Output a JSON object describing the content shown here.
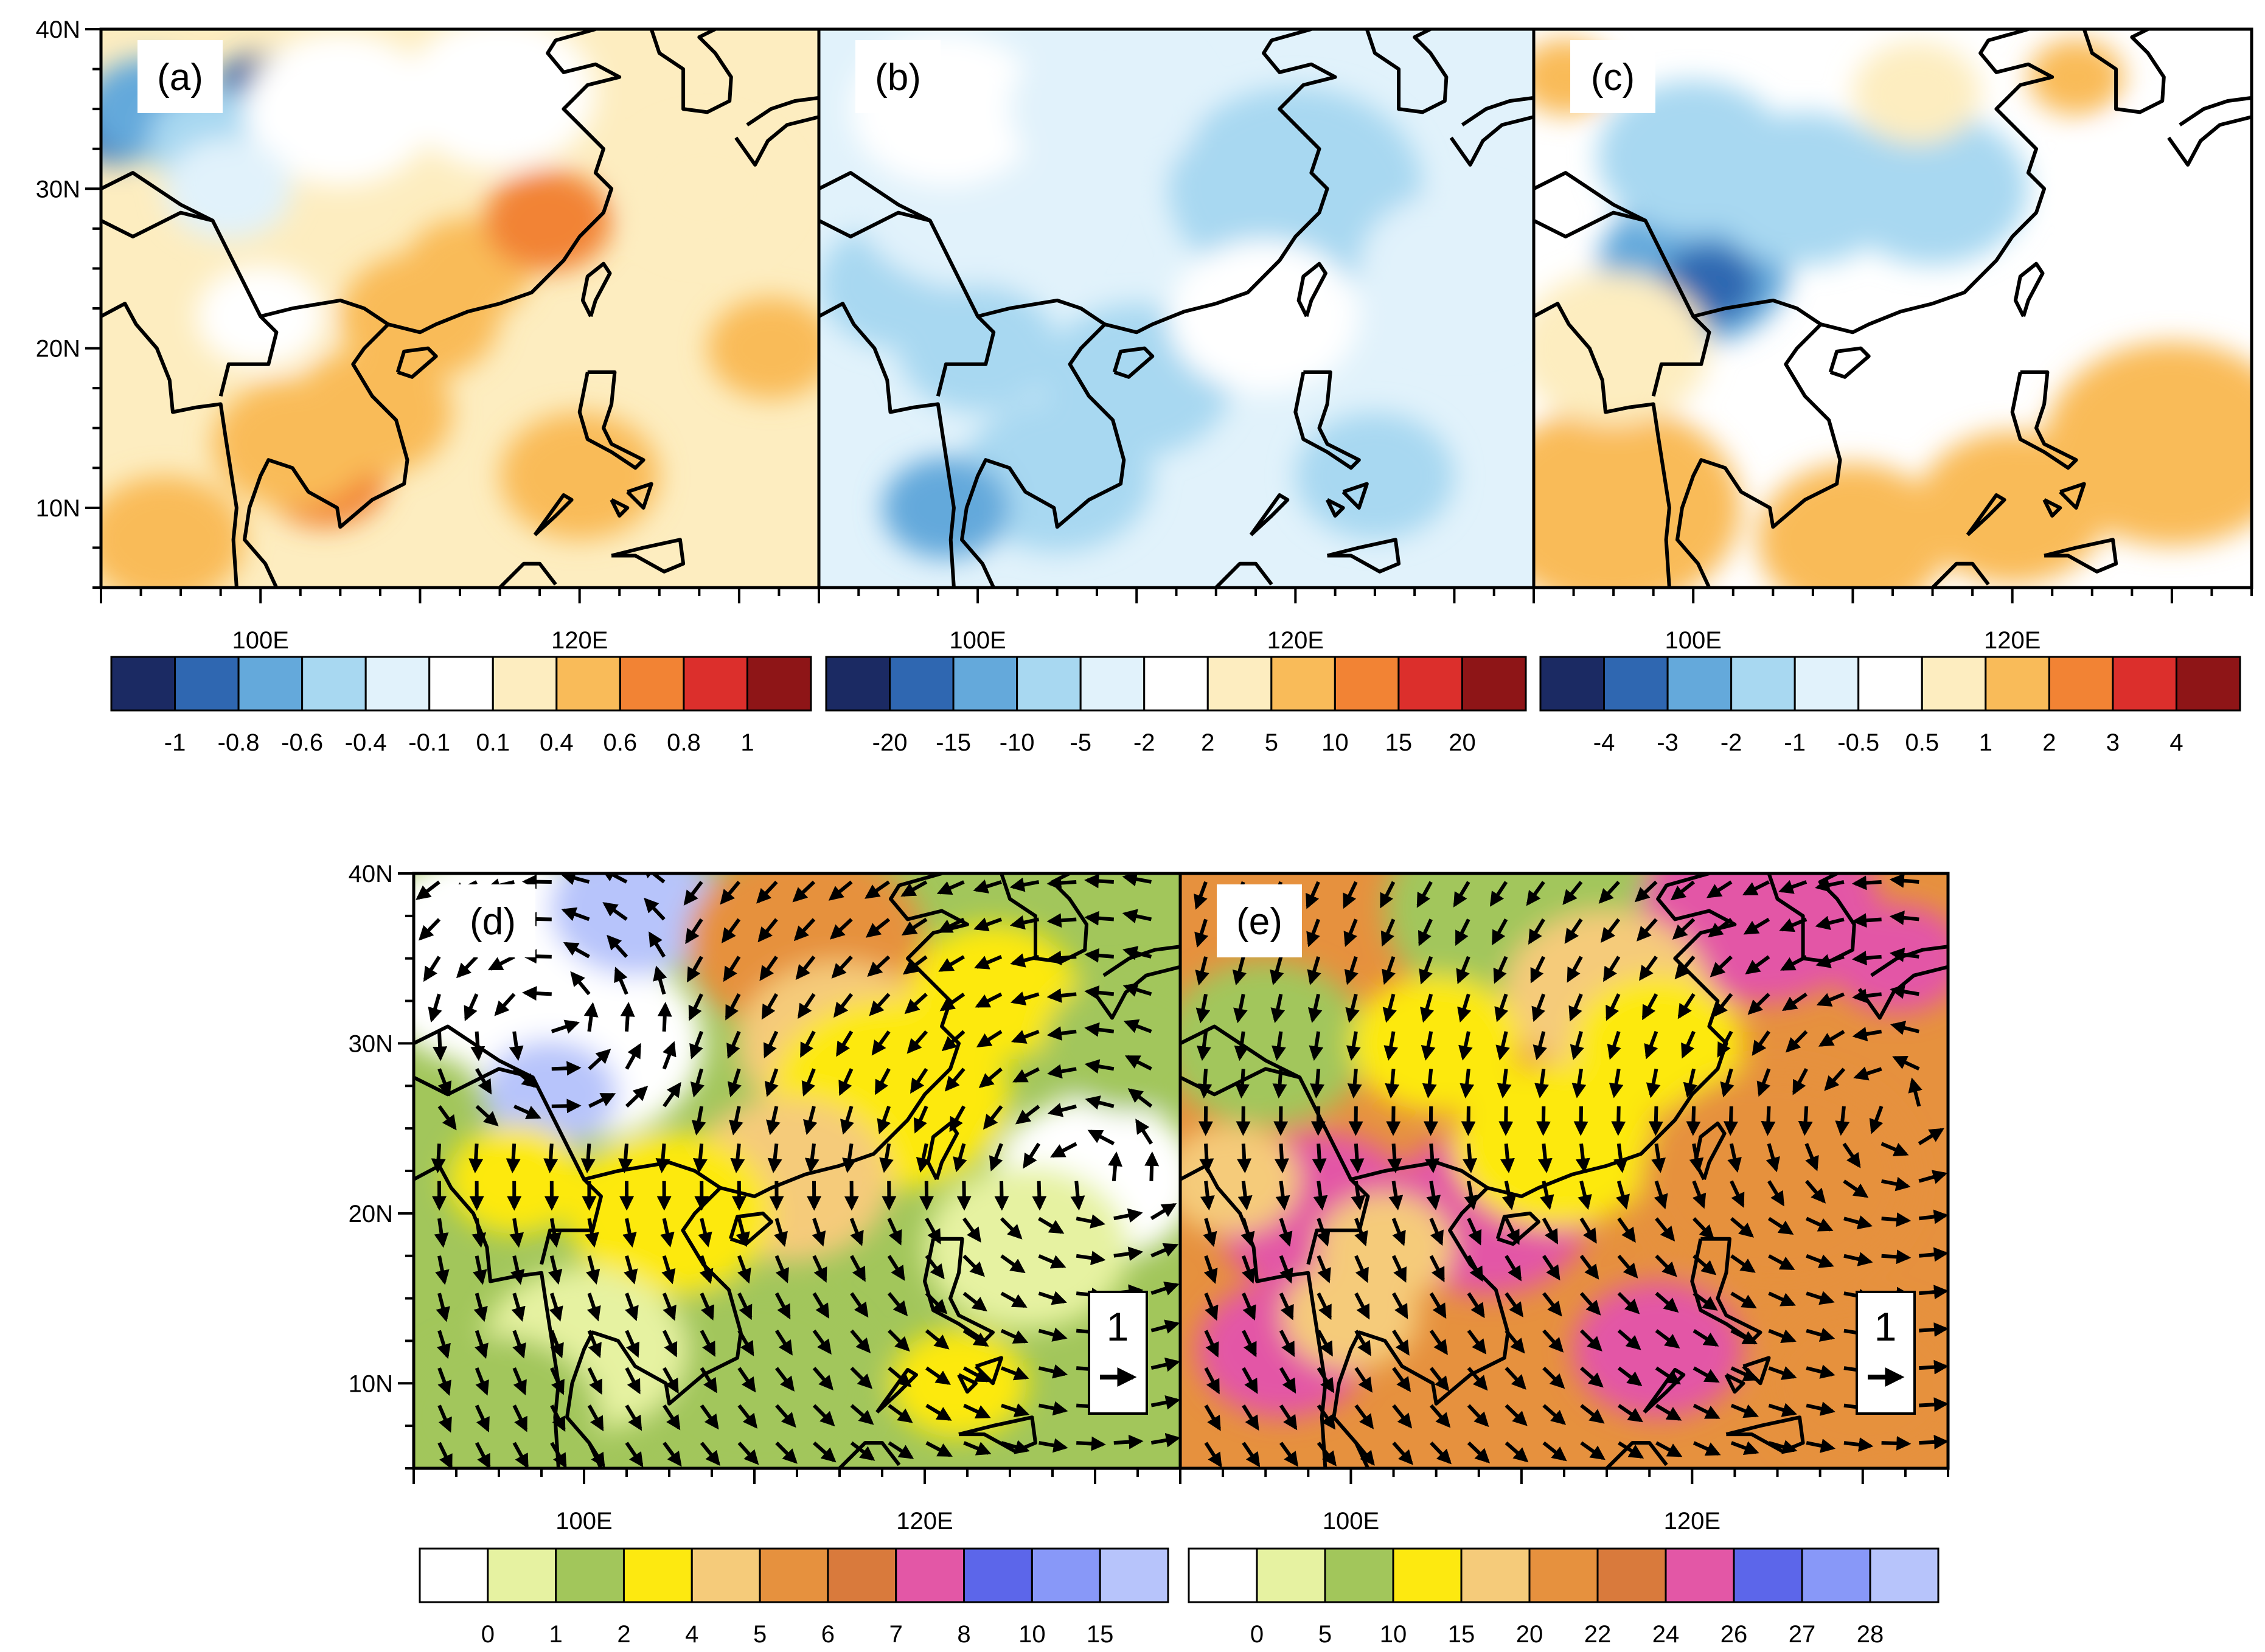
{
  "panels": [
    {
      "id": "a",
      "label": "(a)",
      "palette": "diverging",
      "lat_labels": [
        "40N",
        "30N",
        "20N",
        "10N"
      ],
      "lon_labels": [
        "100E",
        "120E"
      ],
      "colorbar_labels": [
        "-1",
        "-0.8",
        "-0.6",
        "-0.4",
        "-0.1",
        "0.1",
        "0.4",
        "0.6",
        "0.8",
        "1"
      ]
    },
    {
      "id": "b",
      "label": "(b)",
      "palette": "diverging",
      "lat_labels": [],
      "lon_labels": [
        "100E",
        "120E"
      ],
      "colorbar_labels": [
        "-20",
        "-15",
        "-10",
        "-5",
        "-2",
        "2",
        "5",
        "10",
        "15",
        "20"
      ]
    },
    {
      "id": "c",
      "label": "(c)",
      "palette": "diverging",
      "lat_labels": [],
      "lon_labels": [
        "100E",
        "120E"
      ],
      "colorbar_labels": [
        "-4",
        "-3",
        "-2",
        "-1",
        "-0.5",
        "0.5",
        "1",
        "2",
        "3",
        "4"
      ]
    },
    {
      "id": "d",
      "label": "(d)",
      "palette": "sequential",
      "ref_vector_label": "1",
      "lat_labels": [
        "40N",
        "30N",
        "20N",
        "10N"
      ],
      "lon_labels": [
        "100E",
        "120E"
      ],
      "colorbar_labels": [
        "0",
        "1",
        "2",
        "4",
        "5",
        "6",
        "7",
        "8",
        "10",
        "15"
      ]
    },
    {
      "id": "e",
      "label": "(e)",
      "palette": "sequential",
      "ref_vector_label": "1",
      "lat_labels": [],
      "lon_labels": [
        "100E",
        "120E"
      ],
      "colorbar_labels": [
        "0",
        "5",
        "10",
        "15",
        "20",
        "22",
        "24",
        "26",
        "27",
        "28"
      ]
    }
  ],
  "colors": {
    "diverging": [
      "#1b2a63",
      "#2f67b1",
      "#64a9db",
      "#a8d8f1",
      "#e1f2fb",
      "#ffffff",
      "#fdedc0",
      "#f9bb59",
      "#f28334",
      "#dc2f2c",
      "#8e1517"
    ],
    "sequential": [
      "#ffffff",
      "#e6f2a1",
      "#a2c65b",
      "#fde910",
      "#f5cb7a",
      "#e6913e",
      "#d97a3c",
      "#e357a6",
      "#5c66ea",
      "#8898f8",
      "#b7c4fb"
    ],
    "land_outline": "#000000",
    "vector": "#000000"
  }
}
